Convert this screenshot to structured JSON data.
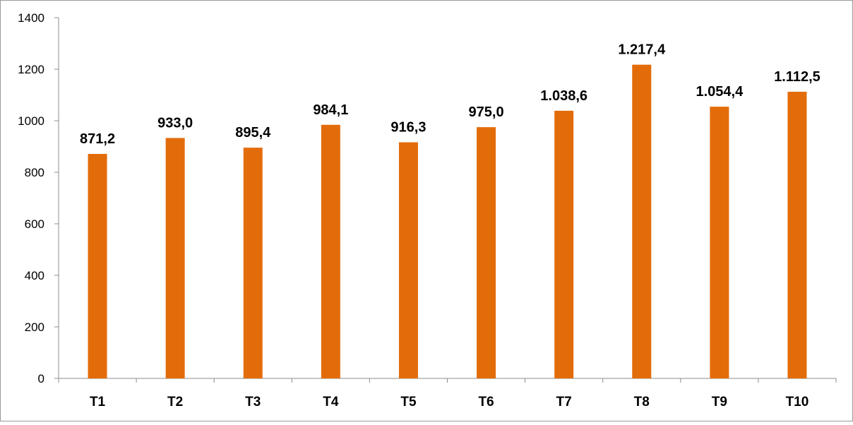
{
  "chart_data": {
    "type": "bar",
    "title": "",
    "xlabel": "",
    "ylabel": "",
    "categories": [
      "T1",
      "T2",
      "T3",
      "T4",
      "T5",
      "T6",
      "T7",
      "T8",
      "T9",
      "T10"
    ],
    "values": [
      871.2,
      933.0,
      895.4,
      984.1,
      916.3,
      975.0,
      1038.6,
      1217.4,
      1054.4,
      1112.5
    ],
    "data_labels": [
      "871,2",
      "933,0",
      "895,4",
      "984,1",
      "916,3",
      "975,0",
      "1.038,6",
      "1.217,4",
      "1.054,4",
      "1.112,5"
    ],
    "ylim": [
      0,
      1400
    ],
    "yticks": [
      0,
      200,
      400,
      600,
      800,
      1000,
      1200,
      1400
    ],
    "ytick_labels": [
      "0",
      "200",
      "400",
      "600",
      "800",
      "1000",
      "1200",
      "1400"
    ],
    "grid": false,
    "legend": "none",
    "bar_color": "#E36C0A"
  }
}
